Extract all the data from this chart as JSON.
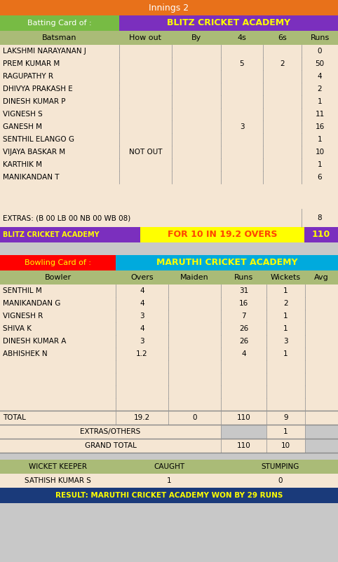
{
  "title": "Innings 2",
  "title_bg": "#E8711A",
  "title_color": "#FFFFFF",
  "batting_label": "Batting Card of :",
  "batting_label_bg": "#77BB44",
  "batting_label_color": "#FFFFFF",
  "batting_team": "BLITZ CRICKET ACADEMY",
  "batting_team_bg": "#7B2FBE",
  "batting_team_color": "#FFFF00",
  "header_bg": "#AABB77",
  "header_color": "#000000",
  "row_bg": "#F5E6D3",
  "batting_headers": [
    "Batsman",
    "How out",
    "By",
    "4s",
    "6s",
    "Runs"
  ],
  "batsmen": [
    [
      "LAKSHMI NARAYANAN J",
      "",
      "",
      "",
      "",
      "0"
    ],
    [
      "PREM KUMAR M",
      "",
      "",
      "5",
      "2",
      "50"
    ],
    [
      "RAGUPATHY R",
      "",
      "",
      "",
      "",
      "4"
    ],
    [
      "DHIVYA PRAKASH E",
      "",
      "",
      "",
      "",
      "2"
    ],
    [
      "DINESH KUMAR P",
      "",
      "",
      "",
      "",
      "1"
    ],
    [
      "VIGNESH S",
      "",
      "",
      "",
      "",
      "11"
    ],
    [
      "GANESH M",
      "",
      "",
      "3",
      "",
      "16"
    ],
    [
      "SENTHIL ELANGO G",
      "",
      "",
      "",
      "",
      "1"
    ],
    [
      "VIJAYA BASKAR M",
      "NOT OUT",
      "",
      "",
      "",
      "10"
    ],
    [
      "KARTHIK M",
      "",
      "",
      "",
      "",
      "1"
    ],
    [
      "MANIKANDAN T",
      "",
      "",
      "",
      "",
      "6"
    ]
  ],
  "extras_label": "EXTRAS: (B 00 LB 00 NB 00 WB 08)",
  "extras_value": "8",
  "summary_team": "BLITZ CRICKET ACADEMY",
  "summary_team_bg": "#7B2FBE",
  "summary_team_color": "#FFFF00",
  "summary_middle": "FOR 10 IN 19.2 OVERS",
  "summary_middle_bg": "#FFFF00",
  "summary_middle_color": "#FF4500",
  "summary_score": "110",
  "summary_score_bg": "#7B2FBE",
  "summary_score_color": "#FFFF00",
  "gap_bg": "#C8C8C8",
  "bowling_label": "Bowling Card of :",
  "bowling_label_bg": "#FF0000",
  "bowling_label_color": "#FFFF00",
  "bowling_team": "MARUTHI CRICKET ACADEMY",
  "bowling_team_bg": "#00AADD",
  "bowling_team_color": "#FFFF00",
  "bowling_headers": [
    "Bowler",
    "Overs",
    "Maiden",
    "Runs",
    "Wickets",
    "Avg"
  ],
  "bowlers": [
    [
      "SENTHIL M",
      "4",
      "",
      "31",
      "1",
      ""
    ],
    [
      "MANIKANDAN G",
      "4",
      "",
      "16",
      "2",
      ""
    ],
    [
      "VIGNESH R",
      "3",
      "",
      "7",
      "1",
      ""
    ],
    [
      "SHIVA K",
      "4",
      "",
      "26",
      "1",
      ""
    ],
    [
      "DINESH KUMAR A",
      "3",
      "",
      "26",
      "3",
      ""
    ],
    [
      "ABHISHEK N",
      "1.2",
      "",
      "4",
      "1",
      ""
    ]
  ],
  "bowling_total_label": "TOTAL",
  "bowling_total": [
    "19.2",
    "0",
    "110",
    "9",
    ""
  ],
  "extras_others_label": "EXTRAS/OTHERS",
  "extras_others_val": "1",
  "grand_total_label": "GRAND TOTAL",
  "grand_total_runs": "110",
  "grand_total_wkts": "10",
  "wk_header_bg": "#AABB77",
  "wk_label": "WICKET KEEPER",
  "wk_caught": "CAUGHT",
  "wk_stumping": "STUMPING",
  "wk_name": "SATHISH KUMAR S",
  "wk_caught_val": "1",
  "wk_stumping_val": "0",
  "result_bg": "#1A3A7A",
  "result_text": "RESULT: MARUTHI CRICKET ACADEMY WON BY 29 RUNS",
  "result_color": "#FFFF00"
}
